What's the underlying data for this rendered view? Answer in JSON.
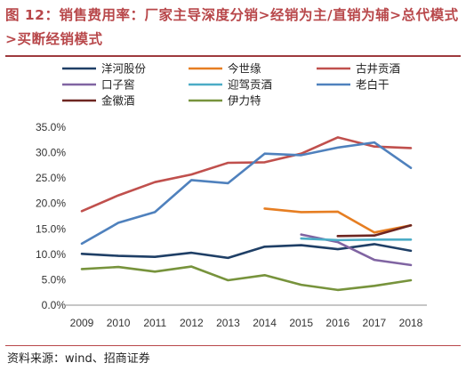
{
  "header": {
    "title": "图 12：销售费用率：厂家主导深度分销>经销为主/直销为辅>总代模式>买断经销模式"
  },
  "footer": {
    "source": "资料来源：wind、招商证券"
  },
  "chart_data": {
    "type": "line",
    "title": "",
    "xlabel": "",
    "ylabel": "",
    "x": [
      "2009",
      "2010",
      "2011",
      "2012",
      "2013",
      "2014",
      "2015",
      "2016",
      "2017",
      "2018"
    ],
    "ylim": [
      0,
      35
    ],
    "yticks": [
      "0.0%",
      "5.0%",
      "10.0%",
      "15.0%",
      "20.0%",
      "25.0%",
      "30.0%",
      "35.0%"
    ],
    "grid": false,
    "legend_position": "top",
    "series": [
      {
        "name": "洋河股份",
        "color": "#1f3f66",
        "values": [
          10.1,
          9.7,
          9.5,
          10.3,
          9.3,
          11.5,
          11.8,
          11.0,
          12.0,
          10.7
        ]
      },
      {
        "name": "今世缘",
        "color": "#e67e22",
        "values": [
          null,
          null,
          null,
          null,
          null,
          19.0,
          18.3,
          18.4,
          14.3,
          15.7
        ]
      },
      {
        "name": "古井贡酒",
        "color": "#c0504d",
        "values": [
          18.5,
          21.6,
          24.2,
          25.7,
          28.0,
          28.1,
          29.8,
          33.0,
          31.2,
          30.9
        ]
      },
      {
        "name": "口子窖",
        "color": "#8064a2",
        "values": [
          null,
          null,
          null,
          null,
          null,
          null,
          13.9,
          12.4,
          8.9,
          7.9
        ]
      },
      {
        "name": "迎驾贡酒",
        "color": "#4bacc6",
        "values": [
          null,
          null,
          null,
          null,
          null,
          null,
          13.1,
          12.8,
          12.9,
          12.9
        ]
      },
      {
        "name": "老白干",
        "color": "#4f81bd",
        "values": [
          12.1,
          16.2,
          18.3,
          24.6,
          24.0,
          29.8,
          29.5,
          31.0,
          32.0,
          27.0
        ]
      },
      {
        "name": "金徽酒",
        "color": "#6e2621",
        "values": [
          null,
          null,
          null,
          null,
          null,
          null,
          null,
          13.6,
          13.7,
          15.7
        ]
      },
      {
        "name": "伊力特",
        "color": "#77933c",
        "values": [
          7.1,
          7.5,
          6.6,
          7.6,
          4.9,
          5.9,
          4.0,
          3.0,
          3.8,
          4.9
        ]
      }
    ]
  }
}
